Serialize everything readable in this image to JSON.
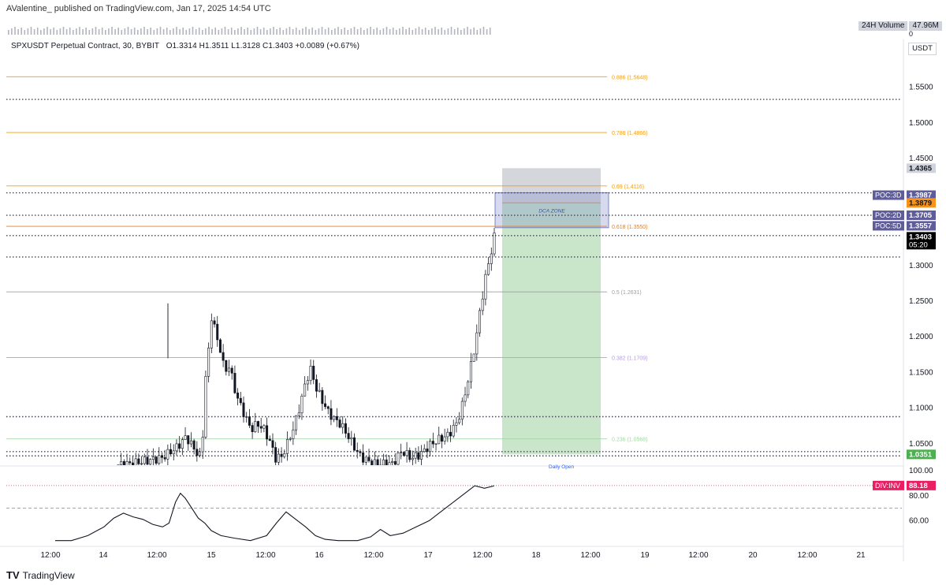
{
  "header": {
    "published": "AValentine_ published on TradingView.com, Jan 17, 2025 14:54 UTC"
  },
  "legend": {
    "symbol": "SPXUSDT Perpetual Contract, 30, BYBIT",
    "ohlc": "O1.3314  H1.3511  L1.3128  C1.3403  +0.0089 (+0.67%)"
  },
  "currency": "USDT",
  "volume_badge": {
    "label": "24H Volume",
    "value": "47.96M",
    "zero": "0"
  },
  "brand": {
    "name": "TradingView",
    "logo": "TV"
  },
  "annotations": {
    "dca_zone": "DCA ZONE",
    "daily_open": "Daily Open"
  },
  "chart_data": {
    "type": "candlestick",
    "ylim": [
      1.02,
      1.595
    ],
    "x_ticks": [
      "12:00",
      "14",
      "12:00",
      "15",
      "12:00",
      "16",
      "12:00",
      "17",
      "12:00",
      "18",
      "12:00",
      "19",
      "12:00",
      "20",
      "12:00",
      "21"
    ],
    "y_ticks": [
      "1.5500",
      "1.5000",
      "1.4500",
      "1.3000",
      "1.2500",
      "1.2000",
      "1.1500",
      "1.1000",
      "1.0500"
    ],
    "fib_levels": [
      {
        "label": "0.886 (1.5648)",
        "value": 1.5648,
        "color": "#f39c12"
      },
      {
        "label": "0.786 (1.4866)",
        "value": 1.4866,
        "color": "#f39c12"
      },
      {
        "label": "0.69 (1.4116)",
        "value": 1.4116,
        "color": "#f39c12"
      },
      {
        "label": "0.618 (1.3550)",
        "value": 1.355,
        "color": "#e67e22"
      },
      {
        "label": "0.5 (1.2631)",
        "value": 1.2631,
        "color": "#9e9e9e"
      },
      {
        "label": "0.382 (1.1709)",
        "value": 1.1709,
        "color": "#b39ddb"
      },
      {
        "label": "0.236 (1.0568)",
        "value": 1.0568,
        "color": "#a5d6a7"
      }
    ],
    "dotted_levels": [
      1.533,
      1.402,
      1.3705,
      1.342,
      1.312,
      1.088,
      1.039,
      1.033
    ],
    "price_badges": [
      {
        "label": "",
        "value": "1.4365",
        "price": 1.4365,
        "bg": "#d1d4dc",
        "fg": "#131722"
      },
      {
        "label": "POC:3D",
        "value": "1.3987",
        "price": 1.3987,
        "bg": "#5e5c99",
        "fg": "#ffffff"
      },
      {
        "label": "",
        "value": "1.3879",
        "price": 1.3879,
        "bg": "#f7931a",
        "fg": "#131722"
      },
      {
        "label": "POC:2D",
        "value": "1.3705",
        "price": 1.3705,
        "bg": "#5e5c99",
        "fg": "#ffffff"
      },
      {
        "label": "POC:5D",
        "value": "1.3557",
        "price": 1.3557,
        "bg": "#5e5c99",
        "fg": "#ffffff"
      },
      {
        "label": "",
        "value": "1.3403",
        "price": 1.3403,
        "bg": "#000000",
        "fg": "#ffffff",
        "sub": "05:20"
      },
      {
        "label": "",
        "value": "1.0351",
        "price": 1.0351,
        "bg": "#4caf50",
        "fg": "#ffffff"
      }
    ],
    "position": {
      "entry": 1.3879,
      "stop": 1.4365,
      "target": 1.0351
    },
    "dca_zone": {
      "top": 1.402,
      "bottom": 1.353
    },
    "price_series": [
      [
        0,
        1.02
      ],
      [
        0.5,
        1.022
      ],
      [
        1,
        1.026
      ],
      [
        1.5,
        1.03
      ],
      [
        2,
        1.045
      ],
      [
        2.3,
        1.06
      ],
      [
        2.6,
        1.04
      ],
      [
        2.8,
        1.03
      ],
      [
        2.95,
        1.16
      ],
      [
        3.05,
        1.185
      ],
      [
        3.15,
        1.245
      ],
      [
        3.25,
        1.2
      ],
      [
        3.4,
        1.185
      ],
      [
        3.55,
        1.15
      ],
      [
        3.7,
        1.16
      ],
      [
        3.85,
        1.13
      ],
      [
        4,
        1.11
      ],
      [
        4.2,
        1.09
      ],
      [
        4.4,
        1.07
      ],
      [
        4.6,
        1.078
      ],
      [
        4.8,
        1.072
      ],
      [
        5,
        1.055
      ],
      [
        5.2,
        1.03
      ],
      [
        5.4,
        1.032
      ],
      [
        5.6,
        1.052
      ],
      [
        5.8,
        1.074
      ],
      [
        6,
        1.105
      ],
      [
        6.2,
        1.14
      ],
      [
        6.35,
        1.155
      ],
      [
        6.5,
        1.13
      ],
      [
        6.7,
        1.112
      ],
      [
        6.9,
        1.095
      ],
      [
        7.1,
        1.085
      ],
      [
        7.3,
        1.078
      ],
      [
        7.5,
        1.065
      ],
      [
        7.7,
        1.05
      ],
      [
        7.9,
        1.035
      ],
      [
        8.1,
        1.028
      ],
      [
        8.4,
        1.022
      ],
      [
        8.7,
        1.022
      ],
      [
        9,
        1.022
      ],
      [
        9.3,
        1.04
      ],
      [
        9.6,
        1.03
      ],
      [
        9.9,
        1.035
      ],
      [
        10.2,
        1.048
      ],
      [
        10.5,
        1.056
      ],
      [
        10.8,
        1.062
      ],
      [
        11.1,
        1.08
      ],
      [
        11.3,
        1.11
      ],
      [
        11.5,
        1.15
      ],
      [
        11.7,
        1.195
      ],
      [
        11.85,
        1.24
      ],
      [
        12,
        1.28
      ],
      [
        12.1,
        1.3
      ],
      [
        12.2,
        1.32
      ],
      [
        12.3,
        1.34
      ]
    ],
    "candle_x_range": [
      0,
      12.3
    ],
    "x_range": [
      -1,
      30
    ],
    "rsi": {
      "ylim": [
        40,
        102
      ],
      "ticks": [
        "100.00",
        "80.00",
        "60.00"
      ],
      "badge": {
        "label": "DIV:INV",
        "value": "88.18",
        "level": 88.18
      },
      "series": [
        [
          -0.5,
          44
        ],
        [
          0,
          44
        ],
        [
          0.5,
          48
        ],
        [
          1,
          55
        ],
        [
          1.3,
          62
        ],
        [
          1.6,
          66
        ],
        [
          1.9,
          63
        ],
        [
          2.2,
          61
        ],
        [
          2.5,
          57
        ],
        [
          2.8,
          55
        ],
        [
          3,
          58
        ],
        [
          3.2,
          75
        ],
        [
          3.35,
          82
        ],
        [
          3.5,
          78
        ],
        [
          3.7,
          70
        ],
        [
          3.9,
          62
        ],
        [
          4.1,
          58
        ],
        [
          4.3,
          52
        ],
        [
          4.6,
          48
        ],
        [
          5,
          46
        ],
        [
          5.5,
          44
        ],
        [
          6,
          48
        ],
        [
          6.3,
          58
        ],
        [
          6.6,
          67
        ],
        [
          6.9,
          61
        ],
        [
          7.2,
          55
        ],
        [
          7.5,
          48
        ],
        [
          7.8,
          45
        ],
        [
          8.2,
          44
        ],
        [
          8.8,
          44
        ],
        [
          9.2,
          47
        ],
        [
          9.5,
          53
        ],
        [
          9.8,
          48
        ],
        [
          10.2,
          50
        ],
        [
          10.6,
          55
        ],
        [
          11,
          60
        ],
        [
          11.4,
          68
        ],
        [
          11.8,
          76
        ],
        [
          12.1,
          82
        ],
        [
          12.4,
          88
        ],
        [
          12.7,
          86
        ],
        [
          13,
          88
        ]
      ]
    }
  }
}
